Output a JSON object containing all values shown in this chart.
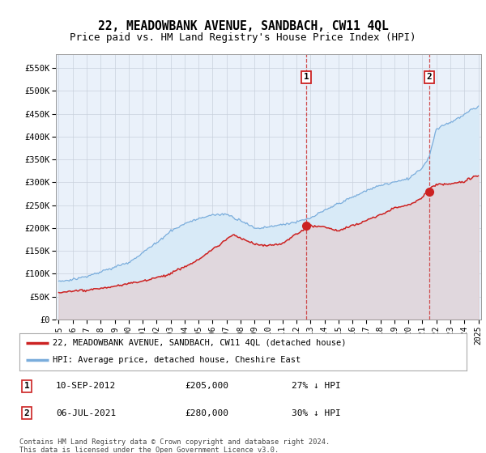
{
  "title": "22, MEADOWBANK AVENUE, SANDBACH, CW11 4QL",
  "subtitle": "Price paid vs. HM Land Registry's House Price Index (HPI)",
  "title_fontsize": 10.5,
  "subtitle_fontsize": 9,
  "ylabel_ticks": [
    "£0",
    "£50K",
    "£100K",
    "£150K",
    "£200K",
    "£250K",
    "£300K",
    "£350K",
    "£400K",
    "£450K",
    "£500K",
    "£550K"
  ],
  "ytick_values": [
    0,
    50000,
    100000,
    150000,
    200000,
    250000,
    300000,
    350000,
    400000,
    450000,
    500000,
    550000
  ],
  "ylim": [
    0,
    580000
  ],
  "xlim_year_start": 1995,
  "xlim_year_end": 2025,
  "hpi_color": "#7aaddc",
  "hpi_fill_color": "#d8eaf7",
  "price_color": "#cc2222",
  "price_fill_color": "#f0d0d0",
  "marker1_date_x": 2012.69,
  "marker1_price": 205000,
  "marker1_label": "1",
  "marker1_date_str": "10-SEP-2012",
  "marker1_price_str": "£205,000",
  "marker1_note": "27% ↓ HPI",
  "marker2_date_x": 2021.5,
  "marker2_price": 280000,
  "marker2_label": "2",
  "marker2_date_str": "06-JUL-2021",
  "marker2_price_str": "£280,000",
  "marker2_note": "30% ↓ HPI",
  "legend_line1": "22, MEADOWBANK AVENUE, SANDBACH, CW11 4QL (detached house)",
  "legend_line2": "HPI: Average price, detached house, Cheshire East",
  "footer": "Contains HM Land Registry data © Crown copyright and database right 2024.\nThis data is licensed under the Open Government Licence v3.0.",
  "bg_color": "#eaf1fa",
  "grid_color": "#c8d0dc"
}
